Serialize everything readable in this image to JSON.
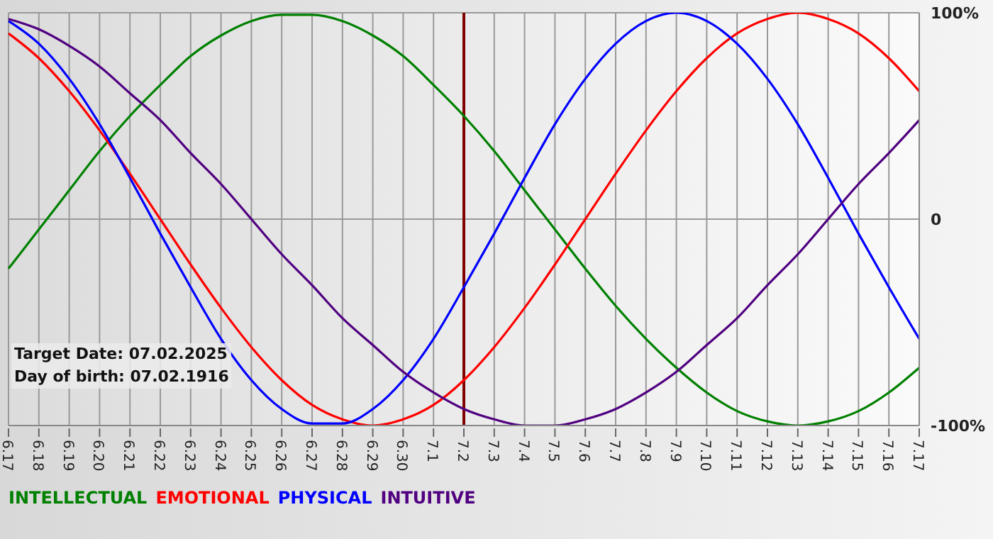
{
  "chart_data": {
    "type": "line",
    "categories": [
      "6.17",
      "6.18",
      "6.19",
      "6.20",
      "6.21",
      "6.22",
      "6.23",
      "6.24",
      "6.25",
      "6.26",
      "6.27",
      "6.28",
      "6.29",
      "6.30",
      "7.1",
      "7.2",
      "7.3",
      "7.4",
      "7.5",
      "7.6",
      "7.7",
      "7.8",
      "7.9",
      "7.10",
      "7.11",
      "7.12",
      "7.13",
      "7.14",
      "7.15",
      "7.16",
      "7.17"
    ],
    "series": [
      {
        "name": "INTELLECTUAL",
        "color": "#008000",
        "values": [
          -24,
          -5,
          14,
          33,
          50,
          65,
          79,
          89,
          96,
          99,
          99,
          96,
          89,
          79,
          65,
          50,
          33,
          14,
          -5,
          -24,
          -42,
          -58,
          -72,
          -84,
          -93,
          -98,
          -100,
          -98,
          -93,
          -84,
          -72
        ]
      },
      {
        "name": "EMOTIONAL",
        "color": "#ff0000",
        "values": [
          90,
          78,
          62,
          43,
          22,
          0,
          -22,
          -43,
          -62,
          -78,
          -90,
          -97,
          -100,
          -97,
          -90,
          -78,
          -62,
          -43,
          -22,
          0,
          22,
          43,
          62,
          78,
          90,
          97,
          100,
          97,
          90,
          78,
          62
        ]
      },
      {
        "name": "PHYSICAL",
        "color": "#0000ff",
        "values": [
          96,
          85,
          68,
          46,
          20,
          -7,
          -33,
          -58,
          -78,
          -92,
          -99,
          -99,
          -92,
          -78,
          -58,
          -33,
          -7,
          20,
          46,
          68,
          85,
          96,
          100,
          96,
          85,
          68,
          46,
          20,
          -7,
          -33,
          -58
        ]
      },
      {
        "name": "INTUITIVE",
        "color": "#500080",
        "values": [
          97,
          92,
          84,
          74,
          61,
          48,
          32,
          17,
          0,
          -17,
          -32,
          -48,
          -61,
          -74,
          -84,
          -92,
          -97,
          -100,
          -100,
          -97,
          -92,
          -84,
          -74,
          -61,
          -48,
          -32,
          -17,
          0,
          17,
          32,
          48
        ]
      }
    ],
    "ylim": [
      -100,
      100
    ],
    "yticks": [
      {
        "value": 100,
        "label": "100%"
      },
      0,
      {
        "value": -100,
        "label": "-100%"
      }
    ],
    "grid": true,
    "legend": "bottom",
    "marker": "none",
    "line_style": "solid",
    "ref_lines": [
      {
        "axis": "x",
        "value": "7.2",
        "color": "#800000"
      }
    ],
    "annotations": [
      "Target Date: 07.02.2025",
      "Day of birth: 07.02.1916"
    ]
  }
}
